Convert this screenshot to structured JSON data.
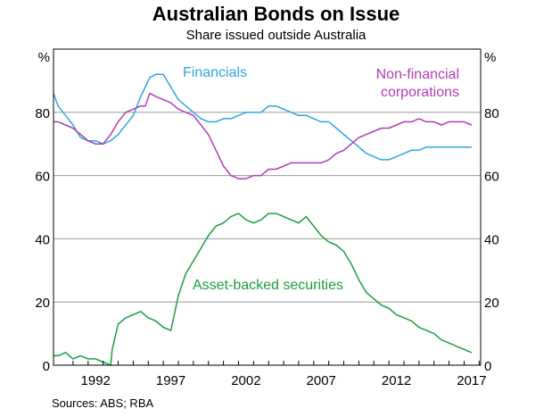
{
  "chart_data": {
    "type": "line",
    "title": "Australian Bonds on Issue",
    "subtitle": "Share issued outside Australia",
    "xlabel": "",
    "ylabel": "%",
    "ylabel_right": "%",
    "xlim": [
      1989.2,
      2017.6
    ],
    "ylim": [
      0,
      100
    ],
    "x_ticks": [
      1992,
      1997,
      2002,
      2007,
      2012,
      2017
    ],
    "y_ticks": [
      0,
      20,
      40,
      60,
      80
    ],
    "grid": true,
    "series": [
      {
        "name": "Financials",
        "label": "Financials",
        "color": "#29a8e0",
        "x": [
          1989.2,
          1989.5,
          1990.0,
          1990.5,
          1991.0,
          1991.5,
          1992.0,
          1992.5,
          1993.0,
          1993.5,
          1994.0,
          1994.5,
          1995.0,
          1995.3,
          1995.6,
          1996.0,
          1996.5,
          1997.0,
          1997.5,
          1998.0,
          1998.5,
          1999.0,
          1999.5,
          2000.0,
          2000.5,
          2001.0,
          2001.5,
          2002.0,
          2002.5,
          2003.0,
          2003.5,
          2004.0,
          2004.5,
          2005.0,
          2005.5,
          2006.0,
          2006.5,
          2007.0,
          2007.5,
          2008.0,
          2008.5,
          2009.0,
          2009.5,
          2010.0,
          2010.5,
          2011.0,
          2011.5,
          2012.0,
          2012.5,
          2013.0,
          2013.5,
          2014.0,
          2014.5,
          2015.0,
          2015.5,
          2016.0,
          2016.5,
          2017.0
        ],
        "values": [
          86,
          82,
          79,
          76,
          72,
          71,
          71,
          70,
          71,
          73,
          76,
          79,
          85,
          88,
          91,
          92,
          92,
          88,
          84,
          82,
          80,
          78,
          77,
          77,
          78,
          78,
          79,
          80,
          80,
          80,
          82,
          82,
          81,
          80,
          79,
          79,
          78,
          77,
          77,
          75,
          73,
          71,
          69,
          67,
          66,
          65,
          65,
          66,
          67,
          68,
          68,
          69,
          69,
          69,
          69,
          69,
          69,
          69
        ]
      },
      {
        "name": "Non-financial corporations",
        "label": "Non-financial corporations",
        "color": "#b33bb5",
        "x": [
          1989.2,
          1989.5,
          1990.0,
          1990.5,
          1991.0,
          1991.5,
          1992.0,
          1992.5,
          1993.0,
          1993.5,
          1994.0,
          1994.5,
          1995.0,
          1995.3,
          1995.6,
          1996.0,
          1996.5,
          1997.0,
          1997.5,
          1998.0,
          1998.5,
          1999.0,
          1999.5,
          2000.0,
          2000.5,
          2001.0,
          2001.5,
          2002.0,
          2002.5,
          2003.0,
          2003.5,
          2004.0,
          2004.5,
          2005.0,
          2005.5,
          2006.0,
          2006.5,
          2007.0,
          2007.5,
          2008.0,
          2008.5,
          2009.0,
          2009.5,
          2010.0,
          2010.5,
          2011.0,
          2011.5,
          2012.0,
          2012.5,
          2013.0,
          2013.5,
          2014.0,
          2014.5,
          2015.0,
          2015.5,
          2016.0,
          2016.5,
          2017.0
        ],
        "values": [
          77,
          77,
          76,
          75,
          73,
          71,
          70,
          70,
          73,
          77,
          80,
          81,
          82,
          82,
          86,
          85,
          84,
          83,
          81,
          80,
          79,
          76,
          73,
          68,
          63,
          60,
          59,
          59,
          60,
          60,
          62,
          62,
          63,
          64,
          64,
          64,
          64,
          64,
          65,
          67,
          68,
          70,
          72,
          73,
          74,
          75,
          75,
          76,
          77,
          77,
          78,
          77,
          77,
          76,
          77,
          77,
          77,
          76
        ]
      },
      {
        "name": "Asset-backed securities",
        "label": "Asset-backed securities",
        "color": "#1a9e3f",
        "x": [
          1989.2,
          1989.5,
          1990.0,
          1990.5,
          1991.0,
          1991.5,
          1992.0,
          1992.5,
          1993.0,
          1993.1,
          1993.5,
          1994.0,
          1994.5,
          1995.0,
          1995.5,
          1996.0,
          1996.5,
          1997.0,
          1997.5,
          1998.0,
          1998.5,
          1999.0,
          1999.5,
          2000.0,
          2000.5,
          2001.0,
          2001.5,
          2002.0,
          2002.5,
          2003.0,
          2003.5,
          2004.0,
          2004.5,
          2005.0,
          2005.5,
          2006.0,
          2006.5,
          2007.0,
          2007.5,
          2008.0,
          2008.5,
          2009.0,
          2009.5,
          2010.0,
          2010.5,
          2011.0,
          2011.5,
          2012.0,
          2012.5,
          2013.0,
          2013.5,
          2014.0,
          2014.5,
          2015.0,
          2015.5,
          2016.0,
          2016.5,
          2017.0
        ],
        "values": [
          3,
          3,
          4,
          2,
          3,
          2,
          2,
          1,
          0,
          5,
          13,
          15,
          16,
          17,
          15,
          14,
          12,
          11,
          22,
          29,
          33,
          37,
          41,
          44,
          45,
          47,
          48,
          46,
          45,
          46,
          48,
          48,
          47,
          46,
          45,
          47,
          44,
          41,
          39,
          38,
          36,
          32,
          27,
          23,
          21,
          19,
          18,
          16,
          15,
          14,
          12,
          11,
          10,
          8,
          7,
          6,
          5,
          4
        ]
      }
    ]
  },
  "source_text": "Sources:   ABS; RBA"
}
